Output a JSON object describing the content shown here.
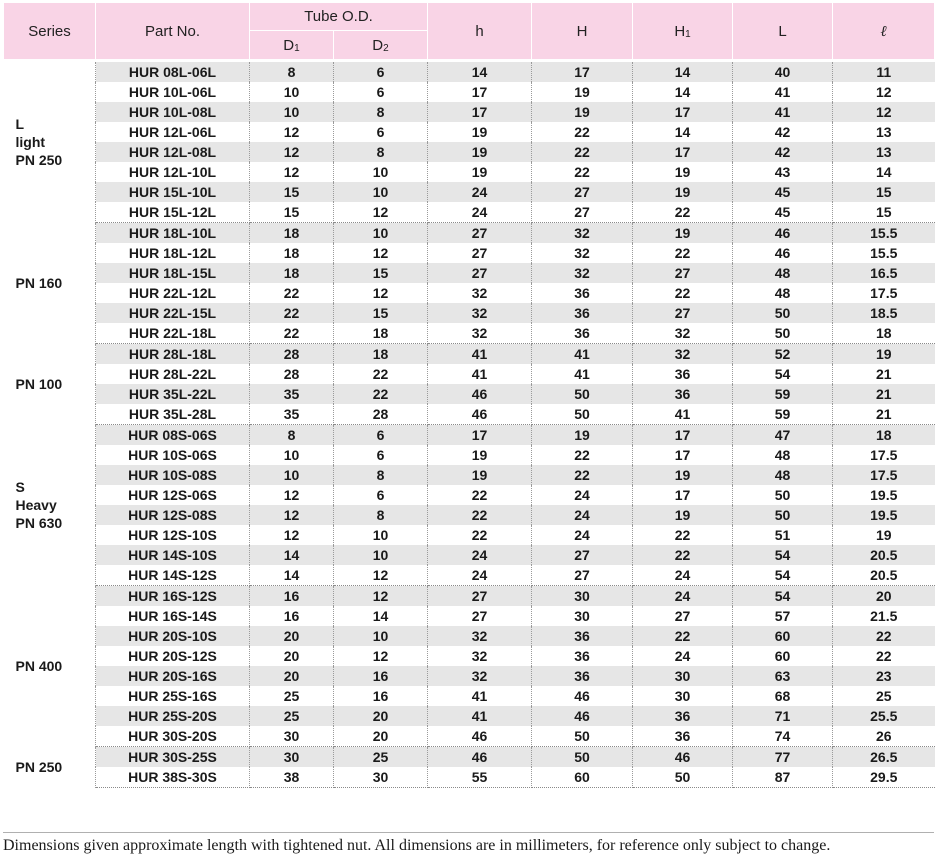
{
  "headers": {
    "series": "Series",
    "part_no": "Part No.",
    "tube_od": "Tube O.D.",
    "d1": "D",
    "d1_sub": "1",
    "d2": "D",
    "d2_sub": "2",
    "h": "h",
    "H": "H",
    "H1": "H",
    "H1_sub": "1",
    "L": "L",
    "ell": "ℓ"
  },
  "groups": [
    {
      "series_lines": [
        "L",
        "light",
        "PN 250"
      ],
      "rows": [
        [
          "HUR 08L-06L",
          "8",
          "6",
          "14",
          "17",
          "14",
          "40",
          "11"
        ],
        [
          "HUR 10L-06L",
          "10",
          "6",
          "17",
          "19",
          "14",
          "41",
          "12"
        ],
        [
          "HUR 10L-08L",
          "10",
          "8",
          "17",
          "19",
          "17",
          "41",
          "12"
        ],
        [
          "HUR 12L-06L",
          "12",
          "6",
          "19",
          "22",
          "14",
          "42",
          "13"
        ],
        [
          "HUR 12L-08L",
          "12",
          "8",
          "19",
          "22",
          "17",
          "42",
          "13"
        ],
        [
          "HUR 12L-10L",
          "12",
          "10",
          "19",
          "22",
          "19",
          "43",
          "14"
        ],
        [
          "HUR 15L-10L",
          "15",
          "10",
          "24",
          "27",
          "19",
          "45",
          "15"
        ],
        [
          "HUR 15L-12L",
          "15",
          "12",
          "24",
          "27",
          "22",
          "45",
          "15"
        ]
      ]
    },
    {
      "series_lines": [
        "PN 160"
      ],
      "rows": [
        [
          "HUR 18L-10L",
          "18",
          "10",
          "27",
          "32",
          "19",
          "46",
          "15.5"
        ],
        [
          "HUR 18L-12L",
          "18",
          "12",
          "27",
          "32",
          "22",
          "46",
          "15.5"
        ],
        [
          "HUR 18L-15L",
          "18",
          "15",
          "27",
          "32",
          "27",
          "48",
          "16.5"
        ],
        [
          "HUR 22L-12L",
          "22",
          "12",
          "32",
          "36",
          "22",
          "48",
          "17.5"
        ],
        [
          "HUR 22L-15L",
          "22",
          "15",
          "32",
          "36",
          "27",
          "50",
          "18.5"
        ],
        [
          "HUR 22L-18L",
          "22",
          "18",
          "32",
          "36",
          "32",
          "50",
          "18"
        ]
      ]
    },
    {
      "series_lines": [
        "PN 100"
      ],
      "rows": [
        [
          "HUR 28L-18L",
          "28",
          "18",
          "41",
          "41",
          "32",
          "52",
          "19"
        ],
        [
          "HUR 28L-22L",
          "28",
          "22",
          "41",
          "41",
          "36",
          "54",
          "21"
        ],
        [
          "HUR 35L-22L",
          "35",
          "22",
          "46",
          "50",
          "36",
          "59",
          "21"
        ],
        [
          "HUR 35L-28L",
          "35",
          "28",
          "46",
          "50",
          "41",
          "59",
          "21"
        ]
      ]
    },
    {
      "series_lines": [
        "S",
        "Heavy",
        "PN 630"
      ],
      "rows": [
        [
          "HUR 08S-06S",
          "8",
          "6",
          "17",
          "19",
          "17",
          "47",
          "18"
        ],
        [
          "HUR 10S-06S",
          "10",
          "6",
          "19",
          "22",
          "17",
          "48",
          "17.5"
        ],
        [
          "HUR 10S-08S",
          "10",
          "8",
          "19",
          "22",
          "19",
          "48",
          "17.5"
        ],
        [
          "HUR 12S-06S",
          "12",
          "6",
          "22",
          "24",
          "17",
          "50",
          "19.5"
        ],
        [
          "HUR 12S-08S",
          "12",
          "8",
          "22",
          "24",
          "19",
          "50",
          "19.5"
        ],
        [
          "HUR 12S-10S",
          "12",
          "10",
          "22",
          "24",
          "22",
          "51",
          "19"
        ],
        [
          "HUR 14S-10S",
          "14",
          "10",
          "24",
          "27",
          "22",
          "54",
          "20.5"
        ],
        [
          "HUR 14S-12S",
          "14",
          "12",
          "24",
          "27",
          "24",
          "54",
          "20.5"
        ]
      ]
    },
    {
      "series_lines": [
        "PN 400"
      ],
      "rows": [
        [
          "HUR 16S-12S",
          "16",
          "12",
          "27",
          "30",
          "24",
          "54",
          "20"
        ],
        [
          "HUR 16S-14S",
          "16",
          "14",
          "27",
          "30",
          "27",
          "57",
          "21.5"
        ],
        [
          "HUR 20S-10S",
          "20",
          "10",
          "32",
          "36",
          "22",
          "60",
          "22"
        ],
        [
          "HUR 20S-12S",
          "20",
          "12",
          "32",
          "36",
          "24",
          "60",
          "22"
        ],
        [
          "HUR 20S-16S",
          "20",
          "16",
          "32",
          "36",
          "30",
          "63",
          "23"
        ],
        [
          "HUR 25S-16S",
          "25",
          "16",
          "41",
          "46",
          "30",
          "68",
          "25"
        ],
        [
          "HUR 25S-20S",
          "25",
          "20",
          "41",
          "46",
          "36",
          "71",
          "25.5"
        ],
        [
          "HUR 30S-20S",
          "30",
          "20",
          "46",
          "50",
          "36",
          "74",
          "26"
        ]
      ]
    },
    {
      "series_lines": [
        "PN 250"
      ],
      "rows": [
        [
          "HUR 30S-25S",
          "30",
          "25",
          "46",
          "50",
          "46",
          "77",
          "26.5"
        ],
        [
          "HUR 38S-30S",
          "38",
          "30",
          "55",
          "60",
          "50",
          "87",
          "29.5"
        ]
      ]
    }
  ],
  "footnote": "Dimensions given approximate length with tightened nut. All dimensions are in millimeters, for reference only subject to change."
}
